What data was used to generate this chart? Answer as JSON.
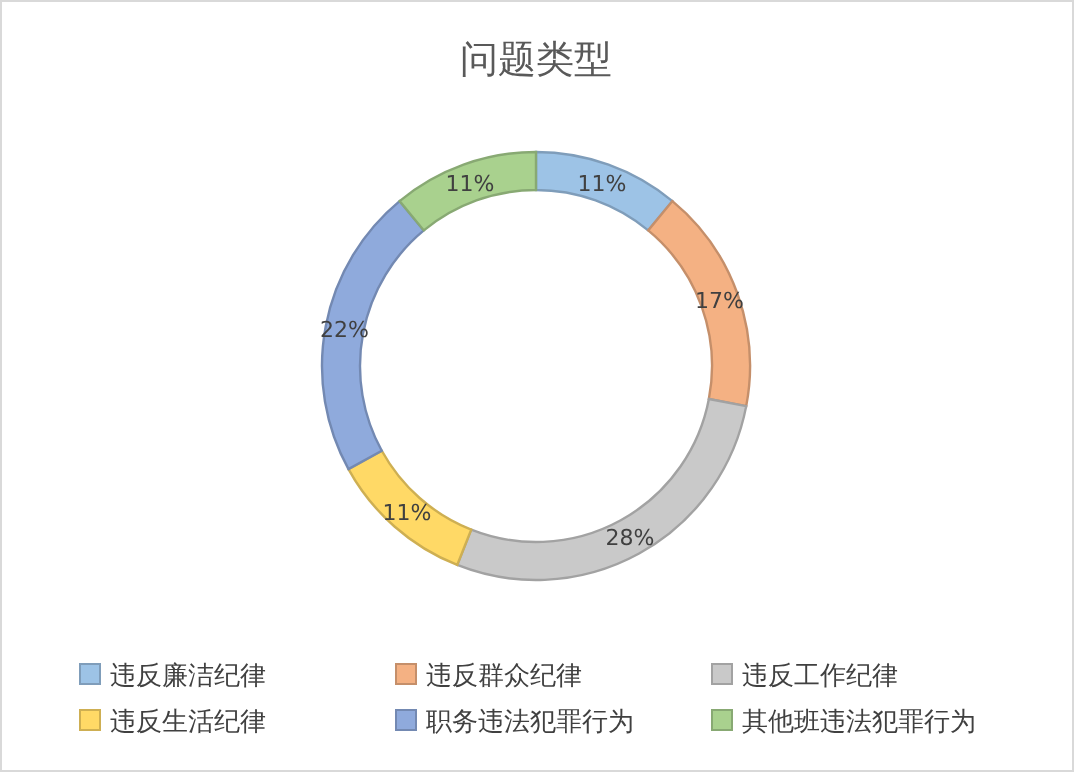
{
  "chart_data": {
    "type": "donut",
    "title": "问题类型",
    "categories": [
      "违反廉洁纪律",
      "违反群众纪律",
      "违反工作纪律",
      "违反生活纪律",
      "职务违法犯罪行为",
      "其他班违法犯罪行为"
    ],
    "values": [
      11,
      17,
      28,
      11,
      22,
      11
    ],
    "colors": [
      "#9dc3e6",
      "#f4b183",
      "#c9c9c9",
      "#ffd966",
      "#8faadc",
      "#a9d18e"
    ],
    "value_labels": [
      "11%",
      "17%",
      "28%",
      "11%",
      "22%",
      "11%"
    ],
    "legend": "bottom"
  }
}
